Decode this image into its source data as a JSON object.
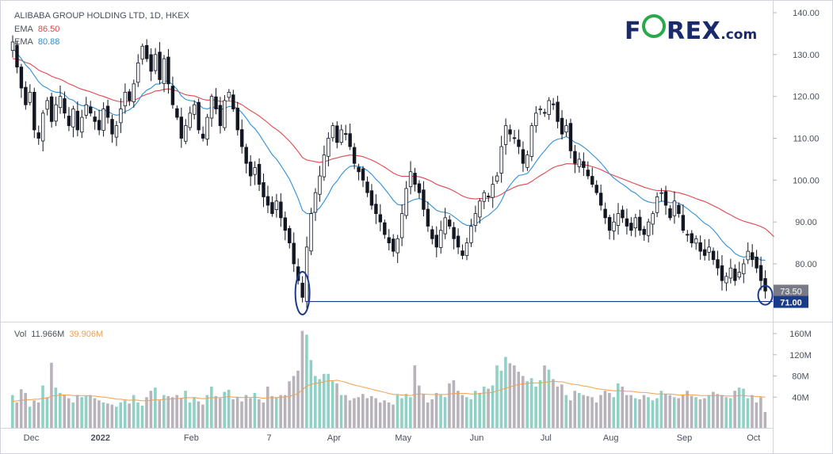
{
  "header": {
    "title": "ALIBABA GROUP HOLDING LTD, 1D, HKEX",
    "ema_long": {
      "label": "EMA",
      "value": "86.50",
      "color": "#e0484d"
    },
    "ema_short": {
      "label": "EMA",
      "value": "80.88",
      "color": "#2f8fd8"
    }
  },
  "logo": {
    "prefix": "F",
    "suffix": "REX",
    "dotcom": ".com",
    "brand_color": "#1b2a6b",
    "accent": "#2aa84a",
    "icon": "forex-o-ring-icon"
  },
  "volume_legend": {
    "label": "Vol",
    "value": "11.966M",
    "ma_value": "39.906M",
    "ma_color": "#f0a050"
  },
  "price_badges": {
    "last": "73.50",
    "support": "71.00"
  },
  "chart_data": [
    {
      "type": "candlestick",
      "title": "ALIBABA GROUP HOLDING LTD, 1D, HKEX",
      "x_ticks": [
        "Dec",
        "2022",
        "Feb",
        "7",
        "Apr",
        "May",
        "Jun",
        "Jul",
        "Aug",
        "Sep",
        "Oct"
      ],
      "y_ticks": [
        "140.00",
        "130.00",
        "120.00",
        "110.00",
        "100.00",
        "90.00",
        "80.00"
      ],
      "ylim": [
        68,
        141
      ],
      "grid": false,
      "support_level": 71.0,
      "annotations": [
        "circle at 2022-03-15 low",
        "circle at last candle"
      ],
      "close": [
        133,
        127,
        122,
        118,
        121,
        112,
        110,
        116,
        119,
        114,
        118,
        120,
        116,
        113,
        117,
        112,
        115,
        118,
        116,
        114,
        112,
        117,
        115,
        111,
        113,
        117,
        121,
        119,
        123,
        128,
        132,
        129,
        126,
        130,
        124,
        129,
        123,
        118,
        115,
        110,
        113,
        116,
        118,
        112,
        110,
        115,
        120,
        117,
        113,
        119,
        121,
        117,
        112,
        108,
        104,
        101,
        103,
        99,
        96,
        94,
        92,
        95,
        91,
        88,
        85,
        80,
        76,
        72,
        84,
        92,
        97,
        101,
        106,
        110,
        113,
        109,
        112,
        111,
        108,
        104,
        102,
        100,
        97,
        94,
        92,
        90,
        87,
        85,
        83,
        86,
        92,
        98,
        102,
        99,
        97,
        93,
        89,
        86,
        84,
        88,
        91,
        89,
        86,
        84,
        82,
        85,
        89,
        92,
        95,
        97,
        96,
        99,
        101,
        108,
        113,
        111,
        110,
        108,
        104,
        106,
        113,
        116,
        117,
        116,
        119,
        118,
        114,
        111,
        113,
        107,
        104,
        105,
        103,
        101,
        99,
        97,
        94,
        91,
        88,
        90,
        92,
        91,
        89,
        88,
        91,
        88,
        87,
        90,
        92,
        96,
        97,
        94,
        91,
        95,
        92,
        88,
        87,
        85,
        86,
        83,
        82,
        84,
        81,
        79,
        76,
        77,
        79,
        76,
        78,
        80,
        83,
        81,
        79,
        76,
        73.5
      ],
      "ema_short": [
        131.5,
        130.3,
        129,
        127.5,
        126.5,
        125,
        123.5,
        122.5,
        122,
        121.3,
        121,
        121,
        120.4,
        119.4,
        119.1,
        118.2,
        117.8,
        117.8,
        117.6,
        117.2,
        116.6,
        116.7,
        116.5,
        115.8,
        115.5,
        115.7,
        116.4,
        116.8,
        117.6,
        118.9,
        120.5,
        121.5,
        122,
        122.9,
        123,
        123.7,
        123.6,
        122.8,
        121.7,
        120.1,
        119.3,
        119,
        118.9,
        118.1,
        117.2,
        117,
        117.4,
        117.4,
        116.9,
        117.1,
        117.6,
        117.6,
        117.1,
        116.1,
        114.8,
        113.3,
        112.3,
        110.9,
        109.3,
        107.7,
        106.1,
        105,
        103.5,
        101.9,
        100.2,
        98,
        95.6,
        92.8,
        92,
        92,
        92.5,
        93.4,
        94.9,
        96.6,
        98.6,
        99.8,
        101.3,
        102.5,
        103.3,
        103.4,
        103.3,
        103,
        102.3,
        101.4,
        100.2,
        99.2,
        97.9,
        96.6,
        95.2,
        94.2,
        94,
        94.4,
        95,
        95.4,
        95.6,
        95.3,
        94.6,
        93.7,
        92.8,
        92.4,
        92.3,
        92,
        91.3,
        90.5,
        89.7,
        89.2,
        89.2,
        89.5,
        90.2,
        91,
        91.6,
        92.5,
        93.4,
        95.1,
        97.3,
        98.8,
        100.1,
        101.1,
        101.3,
        101.6,
        102.9,
        104.4,
        105.8,
        107,
        108.3,
        109.3,
        109.8,
        110,
        110.4,
        109.8,
        109,
        108.6,
        107.9,
        107.1,
        106.1,
        105.2,
        104.1,
        102.9,
        101.5,
        100.5,
        99.7,
        99,
        98.3,
        97.4,
        96.9,
        96,
        95.2,
        94.8,
        94.6,
        94.6,
        95,
        94.9,
        94.6,
        94.7,
        94.5,
        93.9,
        93.2,
        92.3,
        91.6,
        90.6,
        89.7,
        89.1,
        88.1,
        86.9,
        85.5,
        84.4,
        83.6,
        82.5,
        81.9,
        81.6,
        81.8,
        81.8,
        81.5,
        80.9,
        80.88
      ],
      "ema_long": [
        129,
        128.9,
        128.6,
        128.1,
        127.8,
        127.1,
        126.3,
        125.8,
        125.4,
        124.8,
        124.4,
        124.1,
        123.6,
        123,
        122.6,
        122.1,
        121.7,
        121.4,
        121.1,
        120.7,
        120.3,
        120,
        119.6,
        119.2,
        118.9,
        118.7,
        118.8,
        118.8,
        119,
        119.5,
        120.1,
        120.5,
        120.8,
        121.3,
        121.4,
        121.7,
        121.8,
        121.6,
        121.3,
        120.8,
        120.4,
        120.2,
        120.1,
        119.7,
        119.3,
        119.1,
        119.2,
        119.1,
        118.8,
        118.8,
        118.9,
        118.8,
        118.5,
        118,
        117.3,
        116.6,
        116,
        115.3,
        114.5,
        113.7,
        112.8,
        112.1,
        111.3,
        110.3,
        109.3,
        108.1,
        106.8,
        105.4,
        104.8,
        104.6,
        104.4,
        104.2,
        104.4,
        104.7,
        105.1,
        105.3,
        105.6,
        105.8,
        106,
        105.9,
        105.8,
        105.6,
        105.2,
        104.8,
        104.3,
        103.7,
        103.1,
        102.4,
        101.7,
        101.2,
        100.9,
        100.9,
        100.9,
        100.9,
        100.8,
        100.5,
        100.1,
        99.6,
        99,
        98.6,
        98.3,
        97.9,
        97.4,
        96.8,
        96.2,
        95.8,
        95.6,
        95.5,
        95.6,
        95.6,
        95.7,
        95.9,
        96.1,
        96.6,
        97.3,
        97.8,
        98.3,
        98.7,
        98.9,
        99.1,
        99.7,
        100.4,
        101.1,
        101.7,
        102.4,
        103,
        103.4,
        103.6,
        103.9,
        103.9,
        103.8,
        103.8,
        103.7,
        103.5,
        103.2,
        102.9,
        102.5,
        102,
        101.5,
        101.1,
        100.7,
        100.3,
        99.9,
        99.5,
        99.1,
        98.7,
        98.3,
        98,
        97.7,
        97.5,
        97.5,
        97.5,
        97.4,
        97.1,
        97,
        96.7,
        96.4,
        96,
        95.6,
        95.2,
        94.9,
        94.4,
        93.9,
        93.4,
        92.8,
        92.2,
        91.7,
        91.1,
        90.6,
        90.2,
        89.9,
        89.6,
        89.3,
        88.9,
        88.4,
        87.5,
        86.5
      ]
    },
    {
      "type": "bar",
      "title": "Vol",
      "y_ticks": [
        "160M",
        "120M",
        "80M",
        "40M"
      ],
      "ylim": [
        0,
        170
      ],
      "unit": "M",
      "values": [
        44,
        30,
        55,
        48,
        22,
        34,
        30,
        62,
        40,
        105,
        58,
        48,
        44,
        38,
        30,
        44,
        40,
        42,
        44,
        38,
        34,
        30,
        28,
        26,
        22,
        30,
        34,
        28,
        44,
        30,
        24,
        40,
        52,
        58,
        34,
        44,
        42,
        40,
        44,
        38,
        52,
        30,
        40,
        32,
        26,
        44,
        60,
        42,
        38,
        50,
        54,
        36,
        40,
        32,
        44,
        38,
        48,
        36,
        30,
        60,
        42,
        40,
        44,
        44,
        70,
        80,
        90,
        165,
        158,
        110,
        80,
        74,
        84,
        84,
        70,
        66,
        44,
        44,
        34,
        38,
        40,
        46,
        38,
        42,
        38,
        30,
        34,
        30,
        26,
        44,
        38,
        46,
        40,
        100,
        62,
        46,
        30,
        36,
        48,
        44,
        40,
        66,
        72,
        52,
        44,
        40,
        36,
        52,
        48,
        60,
        56,
        62,
        100,
        90,
        116,
        104,
        100,
        88,
        80,
        70,
        76,
        60,
        72,
        100,
        92,
        74,
        60,
        64,
        44,
        34,
        52,
        48,
        44,
        42,
        40,
        30,
        44,
        52,
        48,
        40,
        66,
        60,
        44,
        44,
        38,
        36,
        44,
        40,
        34,
        38,
        52,
        46,
        44,
        40,
        38,
        44,
        52,
        42,
        40,
        36,
        38,
        44,
        50,
        46,
        44,
        40,
        38,
        52,
        58,
        56,
        38,
        44,
        30,
        40,
        12
      ],
      "volume_ma": [
        32,
        33,
        34,
        35,
        35,
        36,
        36,
        38,
        38,
        42,
        43,
        44,
        44,
        44,
        43,
        43,
        43,
        43,
        42,
        42,
        41,
        40,
        39,
        38,
        36,
        36,
        35,
        34,
        35,
        34,
        33,
        33,
        34,
        35,
        35,
        36,
        36,
        37,
        37,
        38,
        39,
        39,
        39,
        38,
        37,
        38,
        39,
        39,
        39,
        40,
        41,
        40,
        40,
        39,
        40,
        39,
        40,
        39,
        38,
        39,
        39,
        39,
        40,
        40,
        42,
        44,
        47,
        54,
        61,
        64,
        66,
        67,
        69,
        71,
        71,
        72,
        70,
        68,
        65,
        63,
        61,
        59,
        57,
        55,
        53,
        51,
        49,
        47,
        45,
        45,
        44,
        44,
        43,
        45,
        46,
        46,
        45,
        45,
        45,
        45,
        45,
        46,
        47,
        47,
        47,
        47,
        46,
        46,
        47,
        48,
        48,
        49,
        52,
        54,
        57,
        59,
        62,
        64,
        65,
        66,
        67,
        67,
        67,
        68,
        69,
        70,
        69,
        69,
        67,
        65,
        64,
        63,
        61,
        60,
        58,
        56,
        55,
        54,
        53,
        52,
        52,
        52,
        51,
        51,
        50,
        49,
        49,
        48,
        47,
        46,
        46,
        46,
        46,
        45,
        44,
        44,
        45,
        44,
        44,
        43,
        43,
        43,
        43,
        43,
        43,
        42,
        42,
        42,
        43,
        43,
        42,
        42,
        41,
        41,
        40
      ]
    }
  ]
}
